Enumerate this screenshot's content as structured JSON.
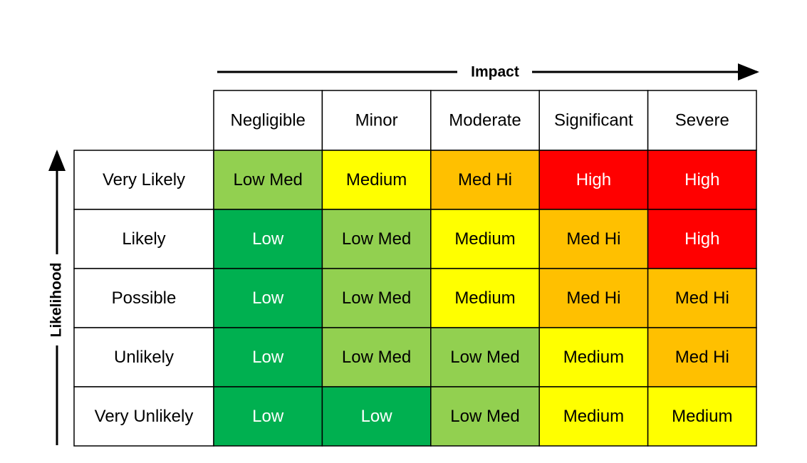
{
  "header": {
    "x_axis": "Impact",
    "y_axis": "Likelihood"
  },
  "table": {
    "columns": [
      "Negligible",
      "Minor",
      "Moderate",
      "Significant",
      "Severe"
    ],
    "rows": [
      {
        "label": "Very Likely",
        "cells": [
          "Low Med",
          "Medium",
          "Med Hi",
          "High",
          "High"
        ]
      },
      {
        "label": "Likely",
        "cells": [
          "Low",
          "Low Med",
          "Medium",
          "Med Hi",
          "High"
        ]
      },
      {
        "label": "Possible",
        "cells": [
          "Low",
          "Low Med",
          "Medium",
          "Med Hi",
          "Med Hi"
        ]
      },
      {
        "label": "Unlikely",
        "cells": [
          "Low",
          "Low Med",
          "Low Med",
          "Medium",
          "Med Hi"
        ]
      },
      {
        "label": "Very Unlikely",
        "cells": [
          "Low",
          "Low",
          "Low Med",
          "Medium",
          "Medium"
        ]
      }
    ]
  },
  "level_colors": {
    "Low": {
      "fill": "#00b050",
      "text": "#ffffff"
    },
    "Low Med": {
      "fill": "#92d050",
      "text": "#000000"
    },
    "Medium": {
      "fill": "#ffff00",
      "text": "#000000"
    },
    "Med Hi": {
      "fill": "#ffc000",
      "text": "#000000"
    },
    "High": {
      "fill": "#ff0000",
      "text": "#ffffff"
    }
  }
}
